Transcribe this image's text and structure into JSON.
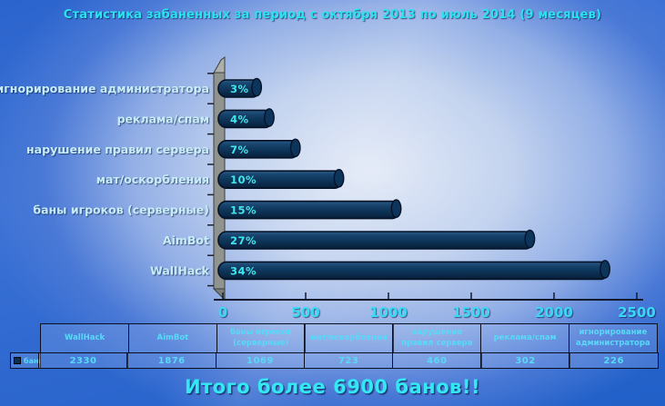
{
  "title": "Статистика забаненных за период с октября 2013 по июль 2014 (9 месяцев)",
  "footer_total": "Итого более 6900 банов!!",
  "chart_data": {
    "type": "bar",
    "orientation": "horizontal",
    "title": "Статистика забаненных за период с октября 2013 по июль 2014 (9 месяцев)",
    "categories": [
      "игнорирование администратора",
      "реклама/спам",
      "нарушение правил сервера",
      "мат/оскорбления",
      "баны игроков (серверные)",
      "AimBot",
      "WallHack"
    ],
    "values": [
      226,
      302,
      460,
      723,
      1069,
      1876,
      2330
    ],
    "percent_labels": [
      "3%",
      "4%",
      "7%",
      "10%",
      "15%",
      "27%",
      "34%"
    ],
    "series_name": "баны",
    "x_ticks": [
      0,
      500,
      1000,
      1500,
      2000,
      2500
    ],
    "xlim": [
      0,
      2500
    ],
    "legend_position": "bottom-left",
    "total_note": "Итого более 6900 банов!!"
  },
  "table": {
    "legend_label": "баны",
    "columns": [
      "WallHack",
      "AimBot",
      "баны игроков (серверные)",
      "мат/оскорбления",
      "нарушение правил сервера",
      "реклама/спам",
      "игнорирование администратора"
    ],
    "values": [
      "2330",
      "1876",
      "1069",
      "723",
      "460",
      "302",
      "226"
    ]
  },
  "colors": {
    "accent_cyan": "#32e2f0",
    "category_label": "#c7edf8",
    "bar_fill": "#0e3458",
    "bar_end": "#0d355b",
    "wall_gray": "#90938e",
    "background_blue": "#2a63cc"
  }
}
